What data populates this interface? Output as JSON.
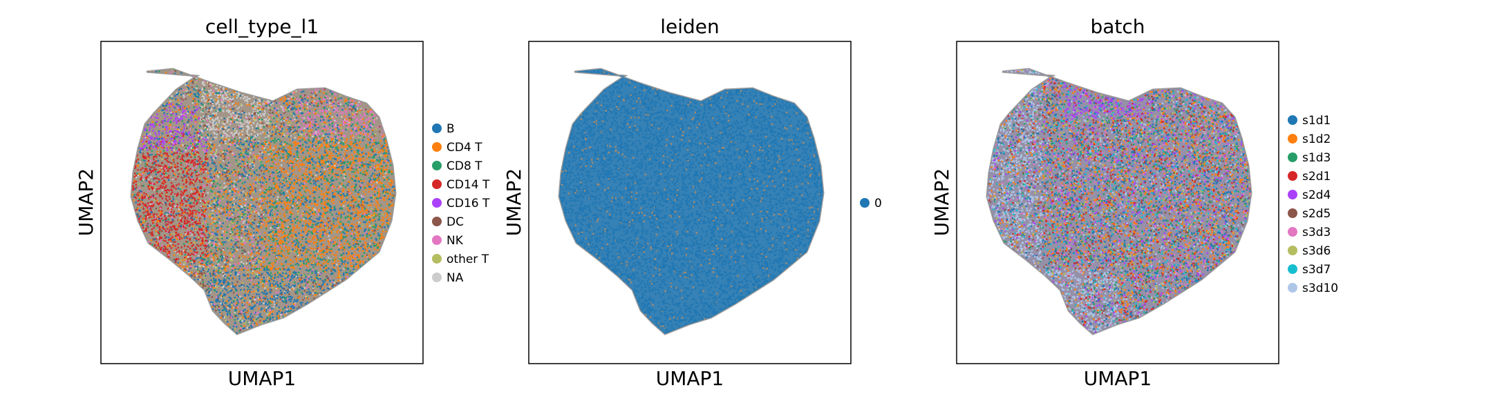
{
  "chart_data": [
    {
      "type": "scatter",
      "title": "cell_type_l1",
      "xlabel": "UMAP1",
      "ylabel": "UMAP2",
      "grid": false,
      "ticks": false,
      "legend_position": "right",
      "series": [
        {
          "name": "B",
          "color": "#1f77b4",
          "region": "lower and right"
        },
        {
          "name": "CD4 T",
          "color": "#ff7f0e",
          "region": "right"
        },
        {
          "name": "CD8 T",
          "color": "#279e68",
          "region": "right"
        },
        {
          "name": "CD14 T",
          "color": "#d62728",
          "region": "left"
        },
        {
          "name": "CD16 T",
          "color": "#aa40fc",
          "region": "upper left"
        },
        {
          "name": "DC",
          "color": "#8c564b",
          "region": "lower left"
        },
        {
          "name": "NK",
          "color": "#e377c2",
          "region": "upper right"
        },
        {
          "name": "other T",
          "color": "#b5bd61",
          "region": "scattered"
        },
        {
          "name": "NA",
          "color": "#cccccc",
          "region": "top center"
        }
      ]
    },
    {
      "type": "scatter",
      "title": "leiden",
      "xlabel": "UMAP1",
      "ylabel": "UMAP2",
      "grid": false,
      "ticks": false,
      "legend_position": "right",
      "series": [
        {
          "name": "0",
          "color": "#1f77b4",
          "region": "whole embedding"
        }
      ]
    },
    {
      "type": "scatter",
      "title": "batch",
      "xlabel": "UMAP1",
      "ylabel": "UMAP2",
      "grid": false,
      "ticks": false,
      "legend_position": "right",
      "series": [
        {
          "name": "s1d1",
          "color": "#1f77b4",
          "region": "mixed"
        },
        {
          "name": "s1d2",
          "color": "#ff7f0e",
          "region": "mixed"
        },
        {
          "name": "s1d3",
          "color": "#279e68",
          "region": "mixed"
        },
        {
          "name": "s2d1",
          "color": "#d62728",
          "region": "mixed"
        },
        {
          "name": "s2d4",
          "color": "#aa40fc",
          "region": "top"
        },
        {
          "name": "s2d5",
          "color": "#8c564b",
          "region": "mixed"
        },
        {
          "name": "s3d3",
          "color": "#e377c2",
          "region": "mixed"
        },
        {
          "name": "s3d6",
          "color": "#b5bd61",
          "region": "mixed"
        },
        {
          "name": "s3d7",
          "color": "#17becf",
          "region": "mixed"
        },
        {
          "name": "s3d10",
          "color": "#aec7e8",
          "region": "left and bottom"
        }
      ]
    }
  ]
}
